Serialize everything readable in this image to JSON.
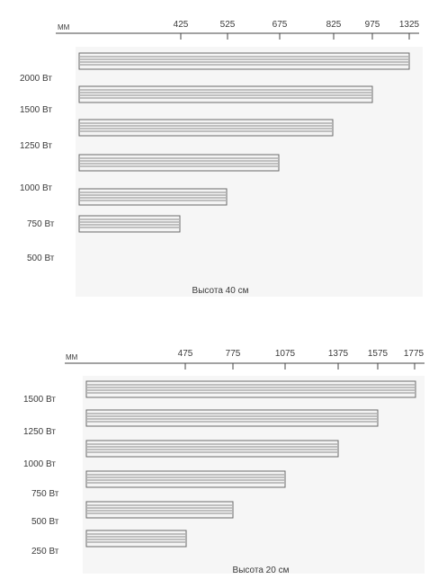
{
  "diagrams": [
    {
      "unit": "ММ",
      "ticks": [
        "425",
        "525",
        "675",
        "825",
        "975",
        "1325"
      ],
      "caption": "Высота 40 см",
      "rows": [
        {
          "label": "2000 Вт",
          "length": "1325"
        },
        {
          "label": "1500 Вт",
          "length": "975"
        },
        {
          "label": "1250 Вт",
          "length": "825"
        },
        {
          "label": "1000 Вт",
          "length": "675"
        },
        {
          "label": "750 Вт",
          "length": "525"
        },
        {
          "label": "500 Вт",
          "length": "425"
        }
      ]
    },
    {
      "unit": "ММ",
      "ticks": [
        "475",
        "775",
        "1075",
        "1375",
        "1575",
        "1775"
      ],
      "caption": "Высота 20 см",
      "rows": [
        {
          "label": "1500 Вт",
          "length": "1775"
        },
        {
          "label": "1250 Вт",
          "length": "1575"
        },
        {
          "label": "1000 Вт",
          "length": "1375"
        },
        {
          "label": "750 Вт",
          "length": "1075"
        },
        {
          "label": "500 Вт",
          "length": "775"
        },
        {
          "label": "250 Вт",
          "length": "475"
        }
      ]
    }
  ],
  "colors": {
    "axis": "#444444",
    "heater_outline": "#6a6a6a",
    "heater_line": "#8a8a8a",
    "heater_fill": "#f4f4f4",
    "panel_shadow": "#f1f1f1"
  }
}
